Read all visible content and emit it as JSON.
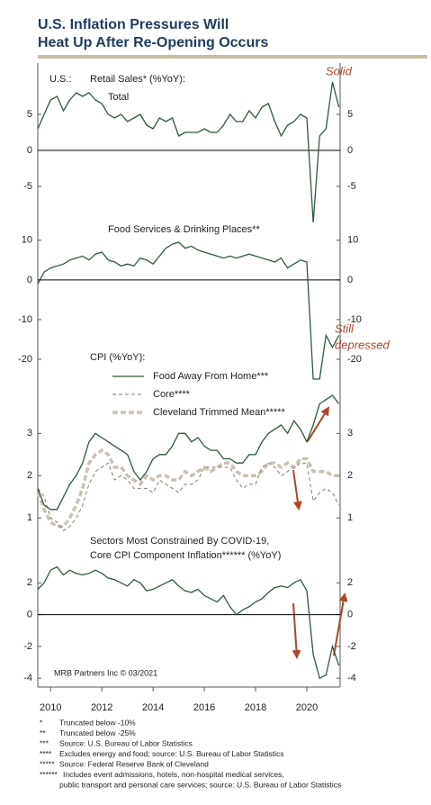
{
  "title_lines": [
    "U.S. Inflation Pressures Will",
    "Heat Up After Re-Opening Occurs"
  ],
  "chart_data": [
    {
      "type": "line",
      "labels": [
        "U.S.:",
        "Retail Sales* (%YoY):",
        "Total"
      ],
      "annotation_lines": [
        "Solid"
      ],
      "x": [
        2009.5,
        2009.75,
        2010,
        2010.25,
        2010.5,
        2010.75,
        2011,
        2011.25,
        2011.5,
        2011.75,
        2012,
        2012.25,
        2012.5,
        2012.75,
        2013,
        2013.25,
        2013.5,
        2013.75,
        2014,
        2014.25,
        2014.5,
        2014.75,
        2015,
        2015.25,
        2015.5,
        2015.75,
        2016,
        2016.25,
        2016.5,
        2016.75,
        2017,
        2017.25,
        2017.5,
        2017.75,
        2018,
        2018.25,
        2018.5,
        2018.75,
        2019,
        2019.25,
        2019.5,
        2019.75,
        2020,
        2020.25,
        2020.5,
        2020.75,
        2021,
        2021.25
      ],
      "series": [
        {
          "color": "#2f5a38",
          "line_style": "solid",
          "values": [
            3,
            5,
            7,
            7.5,
            5.5,
            7,
            8,
            7.5,
            8,
            7,
            6.5,
            5,
            4.5,
            5,
            4,
            4.5,
            5,
            3.5,
            3,
            4.5,
            4,
            4.5,
            2,
            2.5,
            2.5,
            2.5,
            3,
            2.5,
            2.5,
            3.5,
            5,
            4,
            4,
            5.5,
            4.5,
            6,
            6.5,
            4,
            2,
            3.5,
            4,
            5,
            4.5,
            -10,
            2,
            3,
            9.5,
            6
          ]
        }
      ],
      "xlim": [
        2009.5,
        2021.3
      ],
      "ylim": [
        -10,
        10
      ],
      "yticks": [
        -5,
        0,
        5
      ],
      "zero_line": true
    },
    {
      "type": "line",
      "labels": [
        "Food Services & Drinking Places**"
      ],
      "annotation_lines": [
        "Still",
        "depressed"
      ],
      "x": [
        2009.5,
        2009.75,
        2010,
        2010.25,
        2010.5,
        2010.75,
        2011,
        2011.25,
        2011.5,
        2011.75,
        2012,
        2012.25,
        2012.5,
        2012.75,
        2013,
        2013.25,
        2013.5,
        2013.75,
        2014,
        2014.25,
        2014.5,
        2014.75,
        2015,
        2015.25,
        2015.5,
        2015.75,
        2016,
        2016.25,
        2016.5,
        2016.75,
        2017,
        2017.25,
        2017.5,
        2017.75,
        2018,
        2018.25,
        2018.5,
        2018.75,
        2019,
        2019.25,
        2019.5,
        2019.75,
        2020,
        2020.25,
        2020.5,
        2020.75,
        2021,
        2021.25
      ],
      "series": [
        {
          "color": "#2f5a38",
          "line_style": "solid",
          "values": [
            -1,
            2,
            3,
            3.5,
            4,
            5,
            5.5,
            6,
            5,
            6.5,
            7,
            5,
            4.5,
            3.5,
            4,
            3.5,
            5.5,
            5,
            4,
            6,
            8,
            9,
            9.5,
            8,
            8.5,
            7.5,
            7,
            6.5,
            6,
            5.5,
            6,
            5.5,
            6,
            6.5,
            6,
            5.5,
            5,
            4.5,
            5.5,
            3,
            4,
            5,
            4.5,
            -25,
            -25,
            -14,
            -17,
            -14
          ]
        }
      ],
      "xlim": [
        2009.5,
        2021.3
      ],
      "ylim": [
        -25,
        12
      ],
      "yticks": [
        -20,
        -10,
        0,
        10
      ],
      "zero_line": true
    },
    {
      "type": "line",
      "labels": [
        "CPI (%YoY):"
      ],
      "annotation_lines": [],
      "x": [
        2009.5,
        2009.75,
        2010,
        2010.25,
        2010.5,
        2010.75,
        2011,
        2011.25,
        2011.5,
        2011.75,
        2012,
        2012.25,
        2012.5,
        2012.75,
        2013,
        2013.25,
        2013.5,
        2013.75,
        2014,
        2014.25,
        2014.5,
        2014.75,
        2015,
        2015.25,
        2015.5,
        2015.75,
        2016,
        2016.25,
        2016.5,
        2016.75,
        2017,
        2017.25,
        2017.5,
        2017.75,
        2018,
        2018.25,
        2018.5,
        2018.75,
        2019,
        2019.25,
        2019.5,
        2019.75,
        2020,
        2020.25,
        2020.5,
        2020.75,
        2021,
        2021.25
      ],
      "series": [
        {
          "name": "Cleveland Trimmed Mean*****",
          "color": "#cbc2b2",
          "line_style": "thick-dashed",
          "values": [
            1.6,
            1.2,
            0.9,
            0.8,
            0.8,
            1.0,
            1.3,
            1.7,
            2.3,
            2.5,
            2.6,
            2.5,
            2.2,
            2.2,
            2.0,
            1.9,
            1.8,
            2.0,
            1.9,
            2.0,
            2.0,
            1.9,
            1.9,
            2.1,
            2.0,
            2.1,
            2.2,
            2.1,
            2.2,
            2.3,
            2.3,
            2.1,
            2.0,
            2.0,
            2.0,
            2.1,
            2.3,
            2.3,
            2.2,
            2.3,
            2.2,
            2.4,
            2.4,
            2.1,
            2.1,
            2.1,
            2.0,
            2.0
          ]
        },
        {
          "name": "Core****",
          "color": "#8a7e6c",
          "line_style": "dashed",
          "values": [
            1.7,
            1.5,
            1.0,
            0.9,
            0.7,
            0.8,
            1.0,
            1.3,
            1.8,
            2.1,
            2.2,
            2.3,
            1.9,
            2.0,
            1.9,
            1.7,
            1.7,
            1.7,
            1.6,
            1.9,
            1.8,
            1.7,
            1.6,
            1.8,
            1.8,
            1.9,
            2.2,
            2.2,
            2.2,
            2.2,
            2.2,
            1.9,
            1.7,
            1.8,
            1.8,
            2.2,
            2.3,
            2.2,
            2.0,
            2.1,
            2.2,
            2.3,
            2.3,
            1.4,
            1.6,
            1.7,
            1.6,
            1.3
          ]
        },
        {
          "name": "Food Away From Home***",
          "color": "#2f5a38",
          "line_style": "solid",
          "values": [
            1.7,
            1.3,
            1.2,
            1.2,
            1.5,
            1.8,
            2.0,
            2.3,
            2.8,
            3.0,
            2.9,
            2.8,
            2.7,
            2.6,
            2.5,
            2.1,
            1.9,
            2.1,
            2.4,
            2.5,
            2.5,
            2.7,
            3.0,
            3.0,
            2.8,
            2.9,
            2.7,
            2.6,
            2.6,
            2.4,
            2.4,
            2.3,
            2.3,
            2.5,
            2.5,
            2.8,
            3.0,
            3.1,
            3.2,
            3.0,
            3.3,
            3.1,
            2.8,
            3.2,
            3.7,
            3.8,
            3.9,
            3.7
          ]
        }
      ],
      "xlim": [
        2009.5,
        2021.3
      ],
      "ylim": [
        0.6,
        4.2
      ],
      "yticks": [
        1,
        2,
        3
      ],
      "zero_line": false
    },
    {
      "type": "line",
      "labels": [
        "Sectors Most Constrained By COVID-19,",
        "Core CPI Component Inflation****** (%YoY)"
      ],
      "annotation_lines": [],
      "x": [
        2009.5,
        2009.75,
        2010,
        2010.25,
        2010.5,
        2010.75,
        2011,
        2011.25,
        2011.5,
        2011.75,
        2012,
        2012.25,
        2012.5,
        2012.75,
        2013,
        2013.25,
        2013.5,
        2013.75,
        2014,
        2014.25,
        2014.5,
        2014.75,
        2015,
        2015.25,
        2015.5,
        2015.75,
        2016,
        2016.25,
        2016.5,
        2016.75,
        2017,
        2017.25,
        2017.5,
        2017.75,
        2018,
        2018.25,
        2018.5,
        2018.75,
        2019,
        2019.25,
        2019.5,
        2019.75,
        2020,
        2020.25,
        2020.5,
        2020.75,
        2021,
        2021.25
      ],
      "series": [
        {
          "color": "#2f5a38",
          "line_style": "solid",
          "values": [
            1.6,
            2.0,
            2.8,
            3.0,
            2.5,
            2.8,
            2.6,
            2.5,
            2.6,
            2.8,
            2.6,
            2.3,
            2.2,
            2.0,
            1.8,
            2.2,
            2.0,
            1.5,
            1.6,
            1.8,
            2.0,
            2.2,
            1.8,
            1.5,
            1.4,
            1.6,
            1.2,
            1.0,
            0.8,
            1.2,
            0.5,
            0.0,
            0.3,
            0.5,
            0.8,
            1.0,
            1.4,
            1.7,
            1.8,
            1.7,
            2.0,
            2.2,
            1.5,
            -2.5,
            -4.0,
            -3.8,
            -2.0,
            -3.2
          ]
        }
      ],
      "xlim": [
        2009.5,
        2021.3
      ],
      "ylim": [
        -4.5,
        4
      ],
      "yticks": [
        -4,
        -2,
        0,
        2
      ],
      "zero_line": true,
      "xticks": [
        2010,
        2012,
        2014,
        2016,
        2018,
        2020
      ]
    }
  ],
  "source": "MRB Partners Inc © 03/2021",
  "footnotes": [
    {
      "marker": "*",
      "text": "Truncated below -10%"
    },
    {
      "marker": "**",
      "text": "Truncated below -25%"
    },
    {
      "marker": "***",
      "text": "Source: U.S. Bureau of Labor Statistics"
    },
    {
      "marker": "****",
      "text": "Excludes energy and food; source: U.S. Bureau of Labor Statistics"
    },
    {
      "marker": "*****",
      "text": "Source: Federal Reserve Bank of Cleveland"
    },
    {
      "marker": "******",
      "text": "Includes event admissions, hotels, non-hospital medical services,"
    },
    {
      "marker": null,
      "text": "public transport and personal care services; source: U.S. Bureau of Labor Statistics"
    }
  ]
}
